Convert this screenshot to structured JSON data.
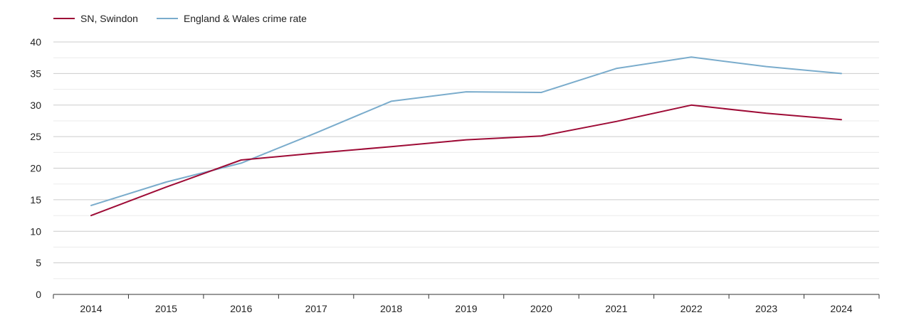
{
  "chart_data": {
    "type": "line",
    "x": [
      "2014",
      "2015",
      "2016",
      "2017",
      "2018",
      "2019",
      "2020",
      "2021",
      "2022",
      "2023",
      "2024"
    ],
    "series": [
      {
        "name": "SN, Swindon",
        "color": "#9e0b36",
        "values": [
          12.5,
          17.0,
          21.3,
          22.4,
          23.4,
          24.5,
          25.1,
          27.4,
          30.0,
          28.7,
          27.7
        ]
      },
      {
        "name": "England & Wales crime rate",
        "color": "#7aaccc",
        "values": [
          14.1,
          17.8,
          20.8,
          25.6,
          30.6,
          32.1,
          32.0,
          35.8,
          37.6,
          36.1,
          35.0
        ]
      }
    ],
    "ylim": [
      0,
      40
    ],
    "yticks": [
      0,
      5,
      10,
      15,
      20,
      25,
      30,
      35,
      40
    ],
    "xlabel": "",
    "ylabel": "",
    "grid": true,
    "legend_position": "top-left"
  }
}
